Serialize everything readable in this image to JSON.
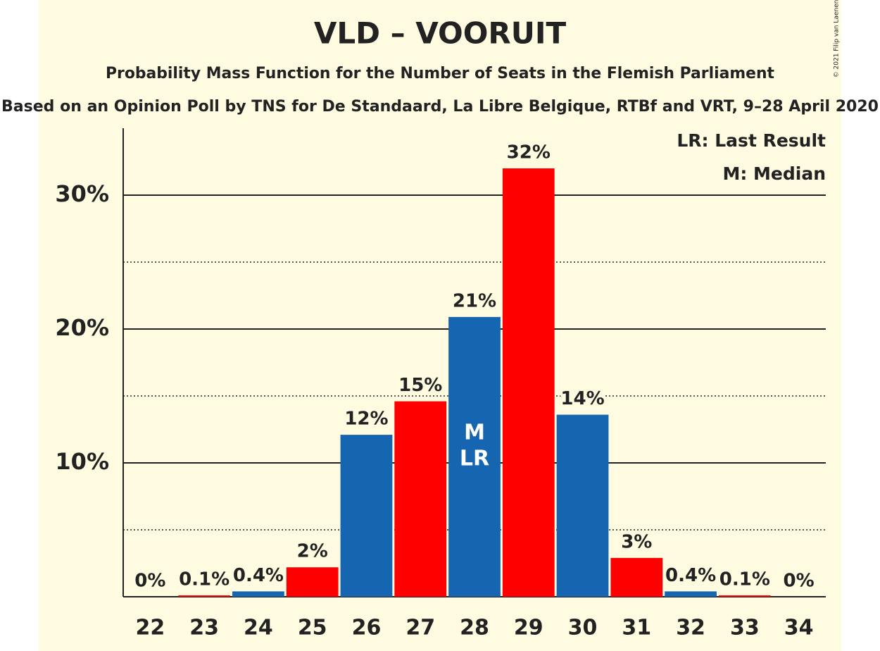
{
  "chart_data": {
    "type": "bar",
    "title": "VLD – VOORUIT",
    "subtitle": "Probability Mass Function for the Number of Seats in the Flemish Parliament",
    "source": "Based on an Opinion Poll by TNS for De Standaard, La Libre Belgique, RTBf and VRT, 9–28 April 2020",
    "copyright": "© 2021 Filip van Laenen",
    "categories": [
      22,
      23,
      24,
      25,
      26,
      27,
      28,
      29,
      30,
      31,
      32,
      33,
      34
    ],
    "values": [
      0,
      0.1,
      0.4,
      2.2,
      12.1,
      14.6,
      20.9,
      32.0,
      13.6,
      2.9,
      0.4,
      0.1,
      0
    ],
    "value_labels": [
      "0%",
      "0.1%",
      "0.4%",
      "2%",
      "12%",
      "15%",
      "21%",
      "32%",
      "14%",
      "3%",
      "0.4%",
      "0.1%",
      "0%"
    ],
    "colors": [
      "#1565b0",
      "#ff0000",
      "#1565b0",
      "#ff0000",
      "#1565b0",
      "#ff0000",
      "#1565b0",
      "#ff0000",
      "#1565b0",
      "#ff0000",
      "#1565b0",
      "#ff0000",
      "#1565b0"
    ],
    "ylim": [
      0,
      35
    ],
    "yticks": [
      {
        "value": 10,
        "label": "10%"
      },
      {
        "value": 20,
        "label": "20%"
      },
      {
        "value": 30,
        "label": "30%"
      }
    ],
    "minor_yticks": [
      5,
      15,
      25
    ],
    "grid": true,
    "median": 28,
    "median_label": "M",
    "last_result": 28,
    "last_result_label": "LR",
    "legend": [
      "LR: Last Result",
      "M: Median"
    ],
    "legend_position": "top-right"
  }
}
